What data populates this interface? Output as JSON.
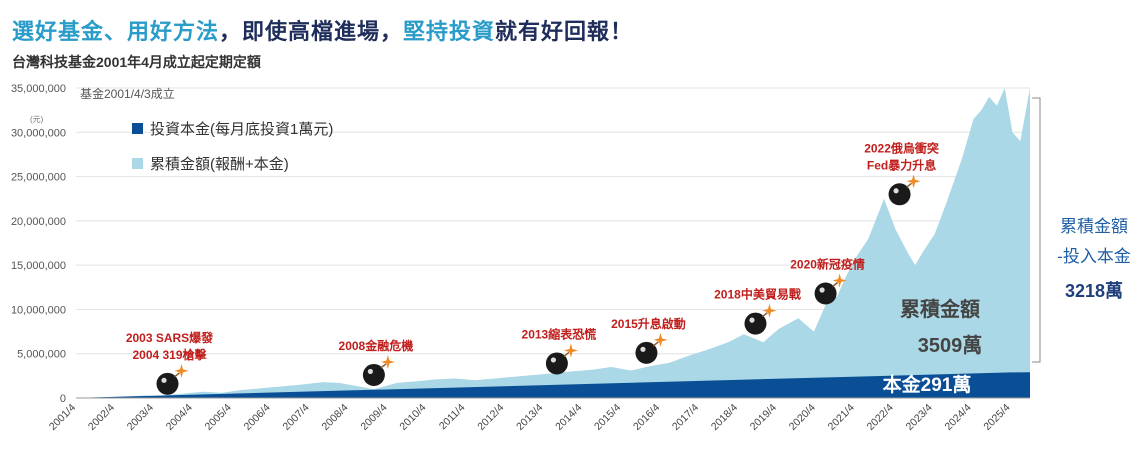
{
  "headline": {
    "part1": "選好基金、用好方法",
    "part2": "，即使高檔進場，",
    "part3": "堅持投資",
    "part4": "就有好回報！"
  },
  "subtitle": "台灣科技基金2001年4月成立起定期定額",
  "colors": {
    "headline_accent": "#2a9cc9",
    "headline_dark": "#1f2d5a",
    "cumulative_area": "#aad8e6",
    "principal_area": "#0a4f96",
    "event_text": "#c0201d",
    "side_text": "#1f5fa8"
  },
  "chart_data": {
    "type": "area",
    "title": "台灣科技基金2001年4月成立起定期定額",
    "fund_start_note": "基金2001/4/3成立",
    "y_unit": "(元)",
    "ylim": [
      0,
      35000000
    ],
    "y_ticks": [
      {
        "value": 0,
        "label": "0"
      },
      {
        "value": 5000000,
        "label": "5,000,000"
      },
      {
        "value": 10000000,
        "label": "10,000,000"
      },
      {
        "value": 15000000,
        "label": "15,000,000"
      },
      {
        "value": 20000000,
        "label": "20,000,000"
      },
      {
        "value": 25000000,
        "label": "25,000,000"
      },
      {
        "value": 30000000,
        "label": "30,000,000"
      },
      {
        "value": 35000000,
        "label": "35,000,000"
      }
    ],
    "x_ticks": [
      "2001/4",
      "2002/4",
      "2003/4",
      "2004/4",
      "2005/4",
      "2006/4",
      "2007/4",
      "2008/4",
      "2009/4",
      "2010/4",
      "2011/4",
      "2012/4",
      "2013/4",
      "2014/4",
      "2015/4",
      "2016/4",
      "2017/4",
      "2018/4",
      "2019/4",
      "2020/4",
      "2021/4",
      "2022/4",
      "2023/4",
      "2024/4",
      "2025/4"
    ],
    "grid": "horizontal",
    "legend_position": "top-left",
    "series": [
      {
        "name": "投資本金(每月底投資1萬元)",
        "color": "#0a4f96",
        "x": [
          2001.25,
          2025.25,
          2025.75
        ],
        "y": [
          10000,
          2890000,
          2910000
        ]
      },
      {
        "name": "累積金額(報酬+本金)",
        "color": "#aad8e6",
        "x": [
          2001.25,
          2002.0,
          2003.0,
          2003.3,
          2004.0,
          2004.5,
          2005.0,
          2005.5,
          2006.0,
          2006.5,
          2007.0,
          2007.6,
          2008.0,
          2008.9,
          2009.5,
          2010.0,
          2010.5,
          2011.0,
          2011.5,
          2012.0,
          2012.5,
          2013.0,
          2013.5,
          2014.0,
          2014.5,
          2015.0,
          2015.5,
          2016.0,
          2016.5,
          2017.0,
          2017.5,
          2018.0,
          2018.4,
          2018.9,
          2019.3,
          2019.8,
          2020.2,
          2020.5,
          2020.8,
          2021.0,
          2021.3,
          2021.6,
          2022.0,
          2022.3,
          2022.6,
          2022.8,
          2023.0,
          2023.3,
          2023.6,
          2024.0,
          2024.3,
          2024.5,
          2024.7,
          2024.9,
          2025.1,
          2025.3,
          2025.5,
          2025.75
        ],
        "y": [
          10000,
          100000,
          280000,
          230000,
          500000,
          700000,
          600000,
          900000,
          1100000,
          1300000,
          1500000,
          1800000,
          1700000,
          1000000,
          1700000,
          1900000,
          2100000,
          2200000,
          2000000,
          2200000,
          2400000,
          2600000,
          2800000,
          3000000,
          3200000,
          3500000,
          3100000,
          3600000,
          4000000,
          4800000,
          5500000,
          6300000,
          7200000,
          6300000,
          7800000,
          9000000,
          7500000,
          10500000,
          11500000,
          13500000,
          16000000,
          18000000,
          22500000,
          19000000,
          16500000,
          15000000,
          16500000,
          18500000,
          22000000,
          27000000,
          31500000,
          32500000,
          34000000,
          33000000,
          35000000,
          30000000,
          29000000,
          35000000
        ]
      }
    ],
    "events": [
      {
        "x": 2003.6,
        "y": 1600000,
        "lines": [
          "2003 SARS爆發",
          "2004 319槍擊"
        ]
      },
      {
        "x": 2008.9,
        "y": 2600000,
        "lines": [
          "2008金融危機"
        ]
      },
      {
        "x": 2013.6,
        "y": 3900000,
        "lines": [
          "2013縮表恐慌"
        ]
      },
      {
        "x": 2015.9,
        "y": 5100000,
        "lines": [
          "2015升息啟動"
        ]
      },
      {
        "x": 2018.7,
        "y": 8400000,
        "lines": [
          "2018中美貿易戰"
        ]
      },
      {
        "x": 2020.5,
        "y": 11800000,
        "lines": [
          "2020新冠疫情"
        ]
      },
      {
        "x": 2022.4,
        "y": 23000000,
        "lines": [
          "2022俄烏衝突",
          "Fed暴力升息"
        ]
      }
    ],
    "annotations": {
      "cumulative_label": "累積金額",
      "cumulative_value": "3509萬",
      "principal_label": "本金291萬",
      "diff_label_line1": "累積金額",
      "diff_label_line2": "-投入本金",
      "diff_value": "3218萬"
    }
  }
}
